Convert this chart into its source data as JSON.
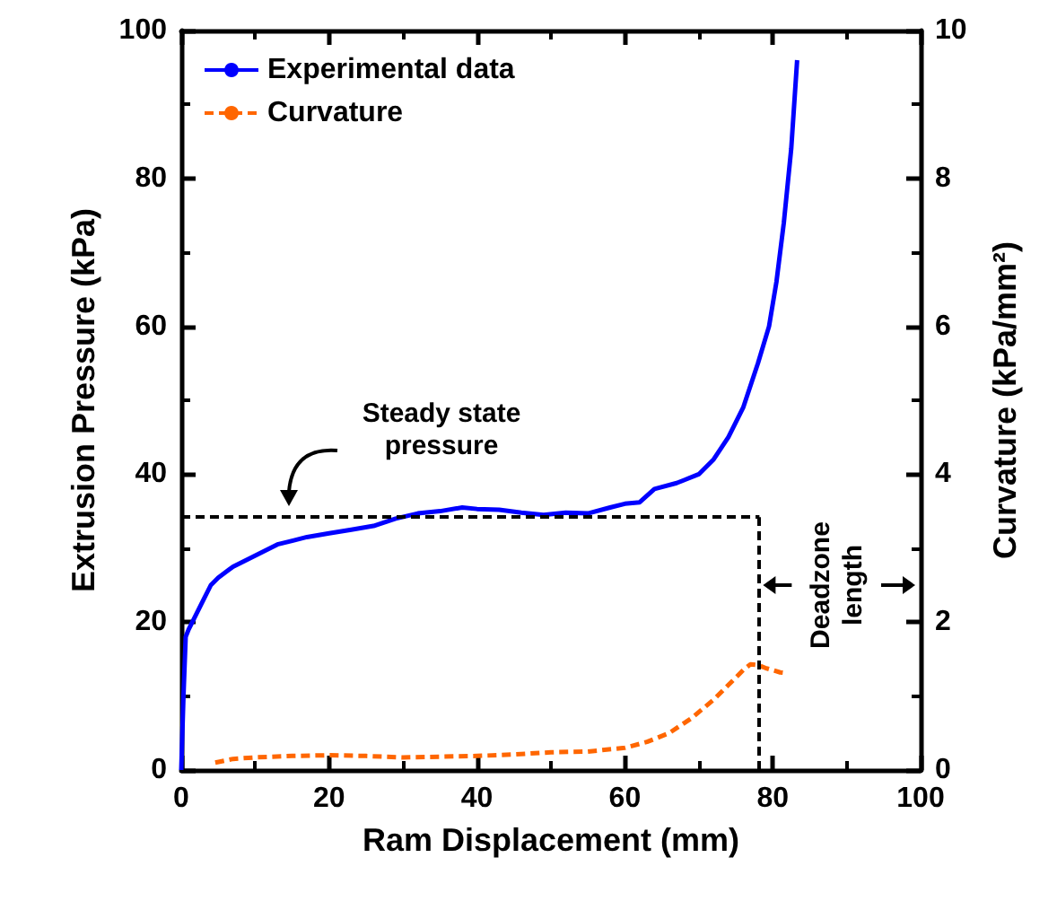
{
  "chart_data": {
    "type": "line",
    "xlabel": "Ram Displacement (mm)",
    "ylabel": "Extrusion Pressure (kPa)",
    "y2label": "Curvature (kPa/mm²)",
    "xlim": [
      0,
      100
    ],
    "xticks": [
      0,
      20,
      40,
      60,
      80,
      100
    ],
    "ylim": [
      0,
      100
    ],
    "yticks": [
      0,
      20,
      40,
      60,
      80,
      100
    ],
    "y2lim": [
      0,
      10
    ],
    "y2ticks": [
      0,
      2,
      4,
      6,
      8,
      10
    ],
    "legend": "top left",
    "grid": false,
    "series": [
      {
        "name": "Experimental data",
        "color": "#0000ff",
        "line_style": "solid",
        "x": [
          0,
          0.3,
          0.6,
          1,
          2,
          3,
          4,
          5,
          7,
          9,
          11,
          13,
          15,
          17,
          20,
          23,
          26,
          29,
          32,
          35,
          38,
          40,
          43,
          46,
          49,
          52,
          55,
          58,
          60,
          62,
          64,
          67,
          70,
          72,
          74,
          76,
          78,
          79.5,
          80.5,
          81.5,
          82.5,
          83.3
        ],
        "values": [
          0,
          10,
          18,
          19,
          21,
          23,
          25,
          26,
          27.5,
          28.5,
          29.5,
          30.5,
          31,
          31.5,
          32,
          32.5,
          33,
          34,
          34.7,
          35,
          35.5,
          35.3,
          35.2,
          34.8,
          34.5,
          34.8,
          34.7,
          35.5,
          36,
          36.2,
          38,
          38.8,
          40,
          42,
          45,
          49,
          55,
          60,
          66,
          74,
          84,
          96
        ]
      },
      {
        "name": "Curvature",
        "color": "#ff6600",
        "line_style": "dashed",
        "axis": "y2",
        "x": [
          4.6,
          7,
          10,
          15,
          20,
          25,
          30,
          35,
          40,
          45,
          50,
          55,
          60,
          63,
          66,
          69,
          72,
          74,
          76,
          77,
          78,
          79,
          80,
          81,
          81.8
        ],
        "values": [
          0.1,
          0.15,
          0.17,
          0.19,
          0.2,
          0.19,
          0.17,
          0.18,
          0.19,
          0.21,
          0.24,
          0.25,
          0.3,
          0.38,
          0.5,
          0.7,
          0.95,
          1.15,
          1.35,
          1.43,
          1.42,
          1.38,
          1.35,
          1.32,
          1.31
        ]
      }
    ],
    "ref_lines": [
      {
        "axis": "y",
        "value": 34.2,
        "line_style": "dashed",
        "color": "#000000"
      },
      {
        "axis": "x",
        "value": 78.2,
        "line_style": "dashed",
        "color": "#000000"
      }
    ],
    "annotations": [
      "Steady state pressure",
      {
        "text": "Deadzone length",
        "x": 78.2,
        "y": 25
      }
    ]
  }
}
